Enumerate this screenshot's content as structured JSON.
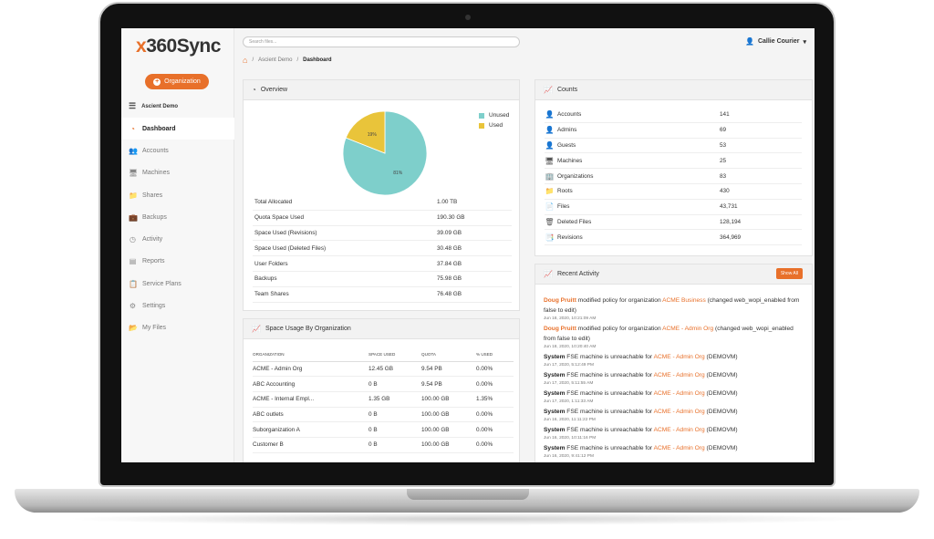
{
  "app": {
    "logo_x": "x",
    "logo_rest": "360Sync"
  },
  "sidebar": {
    "org_button": "Organization",
    "tenant": "Ascient Demo",
    "items": [
      {
        "label": "Dashboard",
        "icon": "dashboard-icon",
        "glyph": "◔",
        "active": true
      },
      {
        "label": "Accounts",
        "icon": "users-icon",
        "glyph": "👥",
        "active": false
      },
      {
        "label": "Machines",
        "icon": "monitor-icon",
        "glyph": "🖥",
        "active": false
      },
      {
        "label": "Shares",
        "icon": "share-folder-icon",
        "glyph": "📁",
        "active": false
      },
      {
        "label": "Backups",
        "icon": "backup-icon",
        "glyph": "💼",
        "active": false
      },
      {
        "label": "Activity",
        "icon": "clock-icon",
        "glyph": "◷",
        "active": false
      },
      {
        "label": "Reports",
        "icon": "document-icon",
        "glyph": "▤",
        "active": false
      },
      {
        "label": "Service Plans",
        "icon": "clipboard-icon",
        "glyph": "📋",
        "active": false
      },
      {
        "label": "Settings",
        "icon": "gear-icon",
        "glyph": "⚙",
        "active": false
      },
      {
        "label": "My Files",
        "icon": "folder-icon",
        "glyph": "📂",
        "active": false
      }
    ]
  },
  "header": {
    "search_placeholder": "Search files...",
    "user": "Callie Courier",
    "breadcrumb": [
      "Ascient Demo",
      "Dashboard"
    ]
  },
  "overview": {
    "title": "Overview",
    "rows": [
      {
        "label": "Total Allocated",
        "value": "1.00 TB"
      },
      {
        "label": "Quota Space Used",
        "value": "190.30 GB"
      },
      {
        "label": "Space Used (Revisions)",
        "value": "39.09 GB"
      },
      {
        "label": "Space Used (Deleted Files)",
        "value": "30.48 GB"
      },
      {
        "label": "User Folders",
        "value": "37.84 GB"
      },
      {
        "label": "Backups",
        "value": "75.98 GB"
      },
      {
        "label": "Team Shares",
        "value": "76.48 GB"
      }
    ]
  },
  "chart_data": {
    "type": "pie",
    "series": [
      {
        "name": "Unused",
        "value": 81,
        "label": "81%",
        "color": "#7ecfcb"
      },
      {
        "name": "Used",
        "value": 19,
        "label": "19%",
        "color": "#e9c43a"
      }
    ],
    "legend": "top-right"
  },
  "space_usage": {
    "title": "Space Usage By Organization",
    "columns": [
      "Organization",
      "Space Used",
      "Quota",
      "% Used"
    ],
    "rows": [
      [
        "ACME - Admin Org",
        "12.45 GB",
        "9.54 PB",
        "0.00%"
      ],
      [
        "ABC Accounting",
        "0 B",
        "9.54 PB",
        "0.00%"
      ],
      [
        "ACME - Internal Empl...",
        "1.35 GB",
        "100.00 GB",
        "1.35%"
      ],
      [
        "ABC outlets",
        "0 B",
        "100.00 GB",
        "0.00%"
      ],
      [
        "Suborganization A",
        "0 B",
        "100.00 GB",
        "0.00%"
      ],
      [
        "Customer B",
        "0 B",
        "100.00 GB",
        "0.00%"
      ]
    ]
  },
  "counts": {
    "title": "Counts",
    "rows": [
      {
        "label": "Accounts",
        "value": "141",
        "icon": "user-icon",
        "glyph": "👤"
      },
      {
        "label": "Admins",
        "value": "69",
        "icon": "admin-icon",
        "glyph": "👤"
      },
      {
        "label": "Guests",
        "value": "53",
        "icon": "guest-icon",
        "glyph": "👤"
      },
      {
        "label": "Machines",
        "value": "25",
        "icon": "monitor-icon",
        "glyph": "🖥"
      },
      {
        "label": "Organizations",
        "value": "83",
        "icon": "building-icon",
        "glyph": "🏢"
      },
      {
        "label": "Roots",
        "value": "430",
        "icon": "folder-icon",
        "glyph": "📁"
      },
      {
        "label": "Files",
        "value": "43,731",
        "icon": "file-icon",
        "glyph": "📄"
      },
      {
        "label": "Deleted Files",
        "value": "128,194",
        "icon": "trash-icon",
        "glyph": "🗑"
      },
      {
        "label": "Revisions",
        "value": "364,969",
        "icon": "revision-icon",
        "glyph": "📑"
      }
    ]
  },
  "activity": {
    "title": "Recent Activity",
    "show_all": "Show All",
    "items": [
      {
        "actor": "Doug Pruitt",
        "text": " modified policy for organization ",
        "org": "ACME Business",
        "tail": " (changed web_wopi_enabled from false to edit)",
        "time": "Jun 18, 2020, 10:21:09 AM",
        "system": false
      },
      {
        "actor": "Doug Pruitt",
        "text": " modified policy for organization ",
        "org": "ACME - Admin Org",
        "tail": " (changed web_wopi_enabled from false to edit)",
        "time": "Jun 18, 2020, 10:20:40 AM",
        "system": false
      },
      {
        "actor": "System",
        "text": " FSE machine is unreachable for ",
        "org": "ACME - Admin Org",
        "tail": " (DEMOVM)",
        "time": "Jun 17, 2020, 5:12:49 PM",
        "system": true
      },
      {
        "actor": "System",
        "text": " FSE machine is unreachable for ",
        "org": "ACME - Admin Org",
        "tail": " (DEMOVM)",
        "time": "Jun 17, 2020, 5:11:55 AM",
        "system": true
      },
      {
        "actor": "System",
        "text": " FSE machine is unreachable for ",
        "org": "ACME - Admin Org",
        "tail": " (DEMOVM)",
        "time": "Jun 17, 2020, 1:11:33 AM",
        "system": true
      },
      {
        "actor": "System",
        "text": " FSE machine is unreachable for ",
        "org": "ACME - Admin Org",
        "tail": " (DEMOVM)",
        "time": "Jun 16, 2020, 11:11:22 PM",
        "system": true
      },
      {
        "actor": "System",
        "text": " FSE machine is unreachable for ",
        "org": "ACME - Admin Org",
        "tail": " (DEMOVM)",
        "time": "Jun 16, 2020, 10:11:16 PM",
        "system": true
      },
      {
        "actor": "System",
        "text": " FSE machine is unreachable for ",
        "org": "ACME - Admin Org",
        "tail": " (DEMOVM)",
        "time": "Jun 16, 2020, 9:41:12 PM",
        "system": true
      }
    ]
  }
}
